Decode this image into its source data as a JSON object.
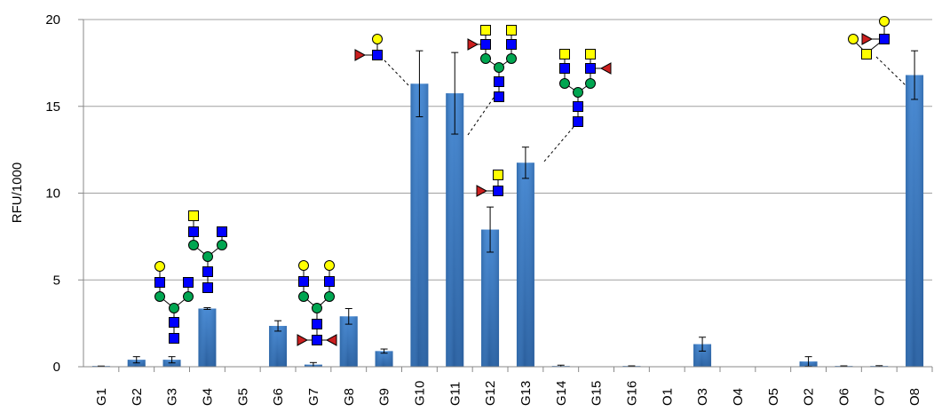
{
  "chart_data": {
    "type": "bar",
    "ylabel": "RFU/1000",
    "ylim": [
      0,
      20
    ],
    "yticks": [
      0,
      5,
      10,
      15,
      20
    ],
    "grid": true,
    "categories": [
      "G1",
      "G2",
      "G3",
      "G4",
      "G5",
      "G6",
      "G7",
      "G8",
      "G9",
      "G10",
      "G11",
      "G12",
      "G13",
      "G14",
      "G15",
      "G16",
      "O1",
      "O3",
      "O4",
      "O5",
      "O2",
      "O6",
      "O7",
      "O8"
    ],
    "series": [
      {
        "values": [
          0.02,
          0.4,
          0.4,
          3.35,
          0,
          2.35,
          0.12,
          2.9,
          0.9,
          16.3,
          15.75,
          7.9,
          11.75,
          0.04,
          0,
          0.02,
          0,
          1.3,
          0,
          0,
          0.3,
          0.02,
          0.03,
          16.8
        ],
        "errors": [
          0.02,
          0.18,
          0.18,
          0.05,
          0,
          0.3,
          0.12,
          0.45,
          0.12,
          1.9,
          2.35,
          1.3,
          0.9,
          0.05,
          0,
          0.03,
          0,
          0.4,
          0,
          0,
          0.28,
          0.03,
          0.03,
          1.4
        ]
      }
    ],
    "colors": {
      "bar": "#3a7bc2",
      "bar_dark": "#27568f",
      "grid": "#a0a0a0",
      "fuc": "#cc1f1f",
      "gal": "#ffff00",
      "glc": "#00a651",
      "glcnac": "#0000ff",
      "outline": "#000000"
    },
    "annotations": [
      {
        "type": "glycan-structure",
        "target": "G3"
      },
      {
        "type": "glycan-structure",
        "target": "G4"
      },
      {
        "type": "glycan-structure",
        "target": "G7"
      },
      {
        "type": "glycan-structure",
        "target": "G10"
      },
      {
        "type": "glycan-structure",
        "target": "G11"
      },
      {
        "type": "glycan-structure",
        "target": "G12"
      },
      {
        "type": "glycan-structure",
        "target": "G13"
      },
      {
        "type": "glycan-structure",
        "target": "O8"
      }
    ]
  }
}
